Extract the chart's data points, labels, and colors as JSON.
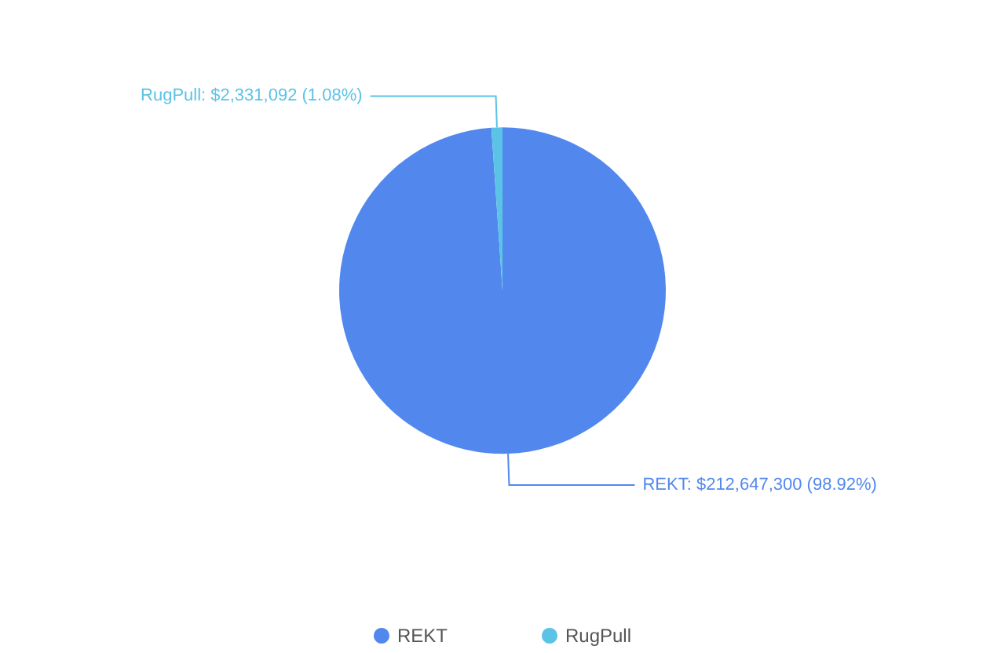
{
  "chart_data": {
    "type": "pie",
    "categories": [
      "REKT",
      "RugPull"
    ],
    "values": [
      212647300,
      2331092
    ],
    "colors": [
      "#5288ee",
      "#5ac3e6"
    ],
    "value_labels": [
      "REKT: $212,647,300 (98.92%)",
      "RugPull: $2,331,092 (1.08%)"
    ],
    "legend": "bottom"
  }
}
